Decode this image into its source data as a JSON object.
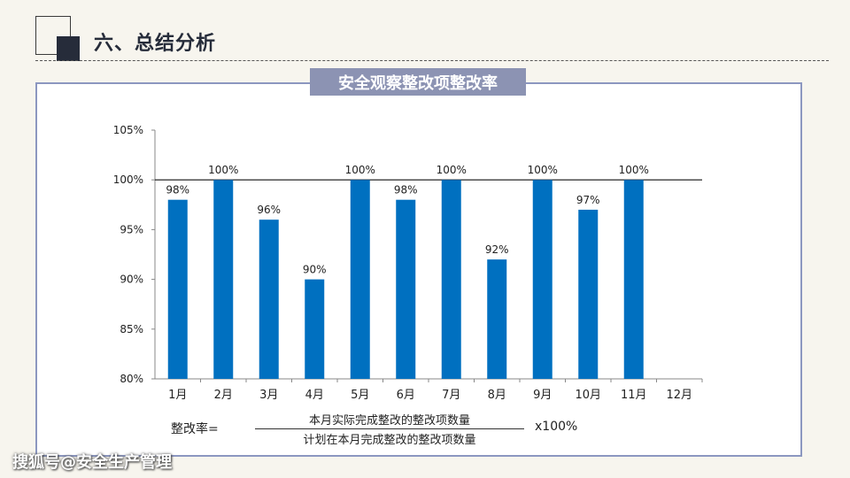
{
  "header": {
    "section_title": "六、总结分析"
  },
  "chart_data": {
    "type": "bar",
    "title": "安全观察整改项整改率",
    "categories": [
      "1月",
      "2月",
      "3月",
      "4月",
      "5月",
      "6月",
      "7月",
      "8月",
      "9月",
      "10月",
      "11月",
      "12月"
    ],
    "values": [
      98,
      100,
      96,
      90,
      100,
      98,
      100,
      92,
      100,
      97,
      100,
      null
    ],
    "data_labels": [
      "98%",
      "100%",
      "96%",
      "90%",
      "100%",
      "98%",
      "100%",
      "92%",
      "100%",
      "97%",
      "100%",
      ""
    ],
    "y_ticks": [
      "80%",
      "85%",
      "90%",
      "95%",
      "100%",
      "105%"
    ],
    "ylim": [
      80,
      105
    ],
    "reference_line": 100,
    "bar_color": "#0070c0",
    "grid": false
  },
  "formula": {
    "label": "整改率=",
    "numerator": "本月实际完成整改的整改项数量",
    "denominator": "计划在本月完成整改的整改项数量",
    "multiplier": "x100%"
  },
  "watermark": "搜狐号@安全生产管理"
}
